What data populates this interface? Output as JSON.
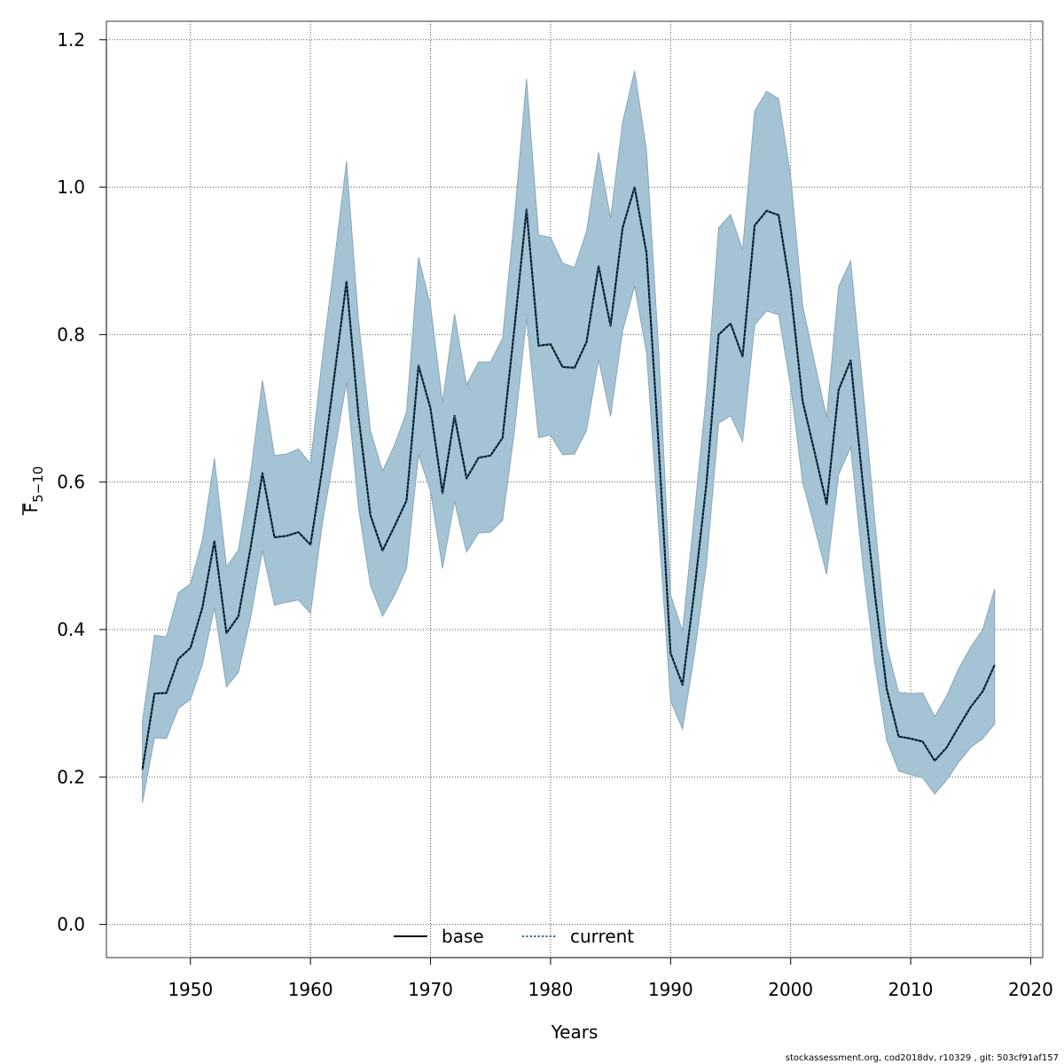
{
  "chart_data": {
    "type": "line",
    "xlabel": "Years",
    "ylabel": {
      "main": "F",
      "subscript": "5−10"
    },
    "xlim": [
      1943,
      2021
    ],
    "ylim": [
      -0.045,
      1.225
    ],
    "xticks": [
      1950,
      1960,
      1970,
      1980,
      1990,
      2000,
      2010,
      2020
    ],
    "yticks": [
      0.0,
      0.2,
      0.4,
      0.6,
      0.8,
      1.0,
      1.2
    ],
    "ytick_labels": [
      "0.0",
      "0.2",
      "0.4",
      "0.6",
      "0.8",
      "1.0",
      "1.2"
    ],
    "grid": true,
    "legend_position": "bottom-center",
    "colors": {
      "band_fill": "#a4c3d4",
      "band_edge": "#8aa7b8",
      "base_line": "#000000",
      "current_line": "#1a5f8c",
      "grid": "#555555"
    },
    "x": [
      1946,
      1947,
      1948,
      1949,
      1950,
      1951,
      1952,
      1953,
      1954,
      1955,
      1956,
      1957,
      1958,
      1959,
      1960,
      1961,
      1962,
      1963,
      1964,
      1965,
      1966,
      1967,
      1968,
      1969,
      1970,
      1971,
      1972,
      1973,
      1974,
      1975,
      1976,
      1977,
      1978,
      1979,
      1980,
      1981,
      1982,
      1983,
      1984,
      1985,
      1986,
      1987,
      1988,
      1989,
      1990,
      1991,
      1992,
      1993,
      1994,
      1995,
      1996,
      1997,
      1998,
      1999,
      2000,
      2001,
      2002,
      2003,
      2004,
      2005,
      2006,
      2007,
      2008,
      2009,
      2010,
      2011,
      2012,
      2013,
      2014,
      2015,
      2016,
      2017
    ],
    "series": [
      {
        "name": "base",
        "style": "solid",
        "values": [
          0.21,
          0.313,
          0.314,
          0.36,
          0.375,
          0.43,
          0.52,
          0.395,
          0.418,
          0.51,
          0.612,
          0.525,
          0.527,
          0.532,
          0.515,
          0.62,
          0.745,
          0.872,
          0.69,
          0.555,
          0.507,
          0.54,
          0.575,
          0.758,
          0.7,
          0.585,
          0.69,
          0.605,
          0.633,
          0.636,
          0.66,
          0.81,
          0.97,
          0.785,
          0.787,
          0.756,
          0.755,
          0.79,
          0.893,
          0.812,
          0.945,
          1.0,
          0.91,
          0.65,
          0.368,
          0.325,
          0.455,
          0.6,
          0.8,
          0.815,
          0.77,
          0.948,
          0.968,
          0.962,
          0.86,
          0.71,
          0.64,
          0.57,
          0.725,
          0.765,
          0.6,
          0.45,
          0.32,
          0.255,
          0.252,
          0.248,
          0.222,
          0.24,
          0.268,
          0.295,
          0.316,
          0.352
        ]
      },
      {
        "name": "current",
        "style": "dotted",
        "values": [
          0.21,
          0.313,
          0.314,
          0.36,
          0.375,
          0.43,
          0.52,
          0.395,
          0.418,
          0.51,
          0.612,
          0.525,
          0.527,
          0.532,
          0.515,
          0.62,
          0.745,
          0.872,
          0.69,
          0.555,
          0.507,
          0.54,
          0.575,
          0.758,
          0.7,
          0.585,
          0.69,
          0.605,
          0.633,
          0.636,
          0.66,
          0.81,
          0.97,
          0.785,
          0.787,
          0.756,
          0.755,
          0.79,
          0.893,
          0.812,
          0.945,
          1.0,
          0.91,
          0.65,
          0.368,
          0.325,
          0.455,
          0.6,
          0.8,
          0.815,
          0.77,
          0.948,
          0.968,
          0.962,
          0.86,
          0.71,
          0.64,
          0.57,
          0.725,
          0.765,
          0.6,
          0.45,
          0.32,
          0.255,
          0.252,
          0.248,
          0.222,
          0.24,
          0.268,
          0.295,
          0.316,
          0.352
        ]
      }
    ],
    "ci_upper": [
      0.275,
      0.392,
      0.39,
      0.45,
      0.462,
      0.522,
      0.632,
      0.485,
      0.508,
      0.61,
      0.738,
      0.636,
      0.638,
      0.645,
      0.625,
      0.77,
      0.9,
      1.035,
      0.82,
      0.67,
      0.615,
      0.65,
      0.695,
      0.905,
      0.84,
      0.708,
      0.828,
      0.732,
      0.763,
      0.763,
      0.795,
      0.96,
      1.147,
      0.935,
      0.932,
      0.897,
      0.891,
      0.94,
      1.047,
      0.958,
      1.088,
      1.158,
      1.05,
      0.78,
      0.447,
      0.398,
      0.56,
      0.722,
      0.945,
      0.963,
      0.915,
      1.103,
      1.13,
      1.12,
      1.015,
      0.84,
      0.762,
      0.688,
      0.865,
      0.9,
      0.73,
      0.55,
      0.378,
      0.315,
      0.313,
      0.314,
      0.282,
      0.31,
      0.347,
      0.376,
      0.4,
      0.455
    ],
    "ci_lower": [
      0.165,
      0.253,
      0.252,
      0.293,
      0.305,
      0.353,
      0.43,
      0.322,
      0.342,
      0.415,
      0.507,
      0.433,
      0.437,
      0.44,
      0.422,
      0.545,
      0.64,
      0.735,
      0.565,
      0.46,
      0.418,
      0.446,
      0.483,
      0.637,
      0.588,
      0.483,
      0.574,
      0.505,
      0.531,
      0.532,
      0.548,
      0.67,
      0.822,
      0.66,
      0.664,
      0.637,
      0.638,
      0.67,
      0.766,
      0.689,
      0.805,
      0.866,
      0.775,
      0.54,
      0.303,
      0.265,
      0.368,
      0.49,
      0.68,
      0.69,
      0.655,
      0.813,
      0.832,
      0.827,
      0.73,
      0.6,
      0.538,
      0.475,
      0.61,
      0.647,
      0.49,
      0.355,
      0.25,
      0.208,
      0.203,
      0.199,
      0.177,
      0.196,
      0.22,
      0.24,
      0.252,
      0.272
    ]
  },
  "legend": {
    "base_label": "base",
    "current_label": "current"
  },
  "footer": {
    "text": "stockassessment.org, cod2018dv, r10329 , git: 503cf91af157"
  }
}
